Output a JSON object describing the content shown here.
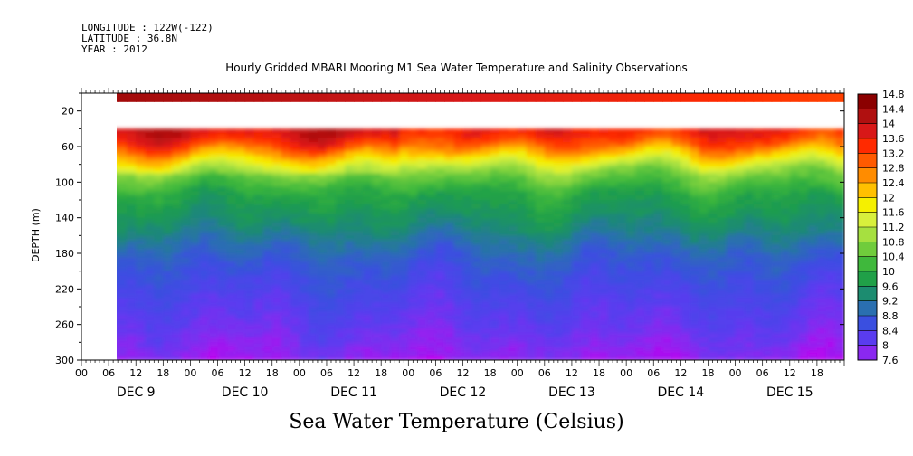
{
  "header": {
    "longitude": "LONGITUDE : 122W(-122)",
    "latitude": "LATITUDE : 36.8N",
    "year": "YEAR : 2012"
  },
  "chart_data": {
    "type": "heatmap",
    "title": "Hourly Gridded MBARI Mooring M1 Sea Water Temperature and Salinity Observations",
    "caption": "Sea Water Temperature (Celsius)",
    "ylabel": "DEPTH (m)",
    "ylim": [
      300,
      0
    ],
    "yticks": [
      20,
      60,
      100,
      140,
      180,
      220,
      260,
      300
    ],
    "xlim_hours": [
      0,
      168
    ],
    "data_start_hour": 6,
    "hour_tick_labels": [
      "00",
      "06",
      "12",
      "18"
    ],
    "day_labels": [
      "DEC  9",
      "DEC 10",
      "DEC 11",
      "DEC 12",
      "DEC 13",
      "DEC 14",
      "DEC 15"
    ],
    "surface_band_depths": [
      0,
      10
    ],
    "gap_depths": [
      10,
      40
    ],
    "colorbar_ticks": [
      "14.8",
      "14.4",
      "14",
      "13.6",
      "13.2",
      "12.8",
      "12.4",
      "12",
      "11.6",
      "11.2",
      "10.8",
      "10.4",
      "10",
      "9.6",
      "9.2",
      "8.8",
      "8.4",
      "8",
      "7.6"
    ],
    "colorbar_colors": [
      "#8b0000",
      "#b01010",
      "#d81818",
      "#ff2a00",
      "#ff5a00",
      "#ff8c00",
      "#ffc000",
      "#f5f000",
      "#d8f03c",
      "#a6e040",
      "#70cc3c",
      "#3fb83c",
      "#20a048",
      "#1c8c70",
      "#2a6fb0",
      "#3a4fe0",
      "#5a3cf0",
      "#8a28f0",
      "#c000f0"
    ],
    "profile": [
      {
        "depth": 40,
        "temp": 13.8
      },
      {
        "depth": 55,
        "temp": 13.2
      },
      {
        "depth": 70,
        "temp": 12.0
      },
      {
        "depth": 85,
        "temp": 11.0
      },
      {
        "depth": 110,
        "temp": 10.1
      },
      {
        "depth": 140,
        "temp": 9.7
      },
      {
        "depth": 180,
        "temp": 9.0
      },
      {
        "depth": 220,
        "temp": 8.6
      },
      {
        "depth": 260,
        "temp": 8.3
      },
      {
        "depth": 300,
        "temp": 7.9
      }
    ]
  }
}
